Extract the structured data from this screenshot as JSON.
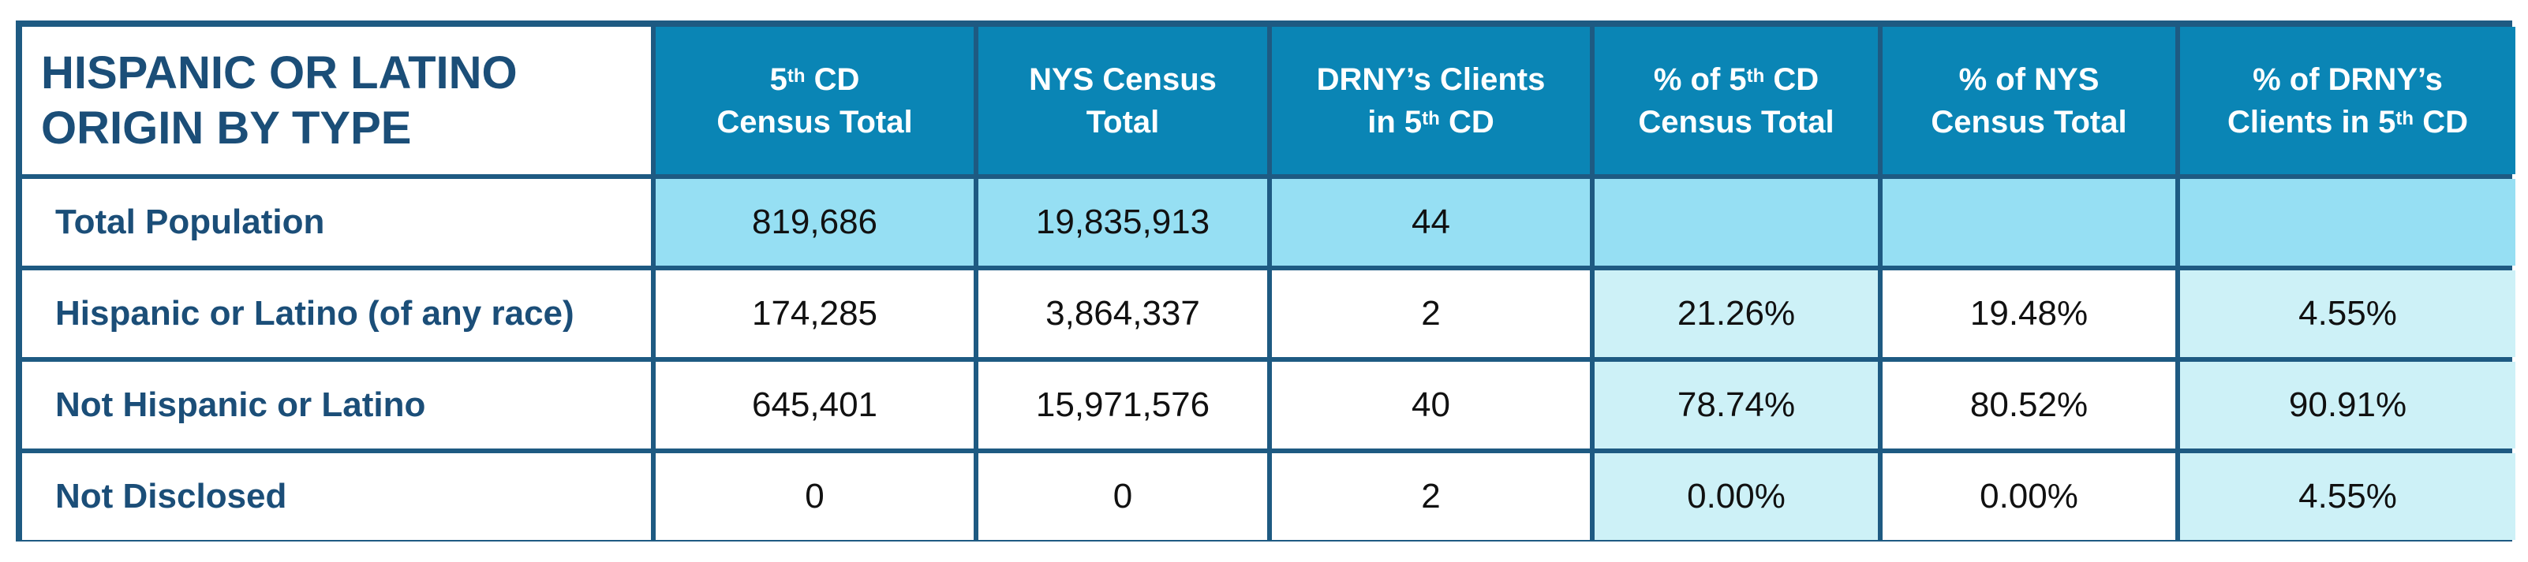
{
  "table": {
    "title_line1": "HISPANIC OR LATINO",
    "title_line2": "ORIGIN BY TYPE",
    "headers": [
      {
        "pre": "5",
        "sup": "th",
        "post": " CD",
        "line2": "Census Total"
      },
      {
        "pre": "NYS Census",
        "sup": "",
        "post": "",
        "line2": "Total"
      },
      {
        "pre": "DRNY’s Clients",
        "sup": "",
        "post": "",
        "line2pre": "in 5",
        "line2sup": "th",
        "line2post": " CD"
      },
      {
        "pre": "% of 5",
        "sup": "th",
        "post": " CD",
        "line2": "Census Total"
      },
      {
        "pre": "% of NYS",
        "sup": "",
        "post": "",
        "line2": "Census Total"
      },
      {
        "pre": "% of DRNY’s",
        "sup": "",
        "post": "",
        "line2pre": "Clients in 5",
        "line2sup": "th",
        "line2post": " CD"
      }
    ],
    "rows": [
      {
        "label": "Total Population",
        "cells": [
          "819,686",
          "19,835,913",
          "44",
          "",
          "",
          ""
        ]
      },
      {
        "label": "Hispanic or Latino (of any race)",
        "cells": [
          "174,285",
          "3,864,337",
          "2",
          "21.26%",
          "19.48%",
          "4.55%"
        ]
      },
      {
        "label": "Not Hispanic or Latino",
        "cells": [
          "645,401",
          "15,971,576",
          "40",
          "78.74%",
          "80.52%",
          "90.91%"
        ]
      },
      {
        "label": "Not Disclosed",
        "cells": [
          "0",
          "0",
          "2",
          "0.00%",
          "0.00%",
          "4.55%"
        ]
      }
    ]
  },
  "colors": {
    "border": "#1e5a82",
    "header_bg": "#0a85b5",
    "total_row_bg": "#96dff3",
    "percent_bg": "#cdf1f7",
    "label_text": "#1b4e78"
  }
}
